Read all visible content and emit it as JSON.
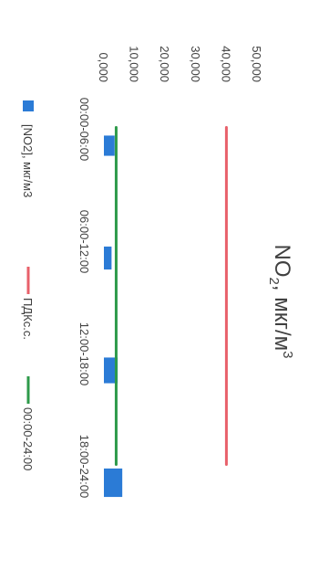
{
  "chart_data": {
    "type": "bar",
    "title": "NO",
    "title_subscript": "2",
    "title_suffix": ", мкг/м",
    "title_superscript": "3",
    "categories": [
      "00:00-06:00",
      "06:00-12:00",
      "12:00-18:00",
      "18:00-24:00"
    ],
    "ylim": [
      0,
      50000
    ],
    "y_ticks": [
      "0,000",
      "10,000",
      "20,000",
      "30,000",
      "40,000",
      "50,000"
    ],
    "y_tick_values": [
      0,
      10000,
      20000,
      30000,
      40000,
      50000
    ],
    "series": [
      {
        "name": "[NO2], мкг/м3",
        "kind": "bar",
        "color": "#2b7bd6",
        "values": [
          3500,
          2500,
          4500,
          6000
        ]
      },
      {
        "name": "ПДКс.с.",
        "kind": "line",
        "color": "#e8606a",
        "values": [
          40000,
          40000,
          40000,
          40000
        ]
      },
      {
        "name": "00:00-24:00",
        "kind": "line",
        "color": "#2e9a4a",
        "values": [
          4000,
          4000,
          4000,
          4000
        ]
      }
    ],
    "orientation": "rotated-90-clockwise",
    "grid": false,
    "legend": "bottom"
  }
}
